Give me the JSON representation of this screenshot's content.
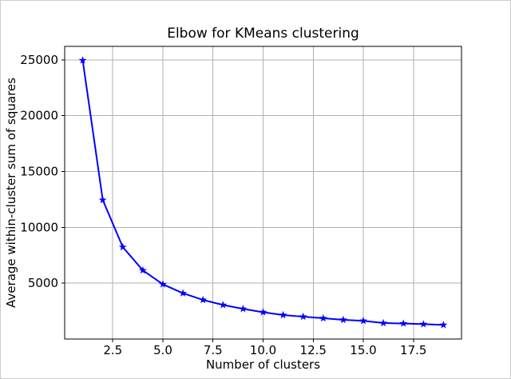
{
  "figure": {
    "background": "#ffffff",
    "border_color": "#cccccc"
  },
  "chart_data": {
    "type": "line",
    "title": "Elbow for KMeans clustering",
    "xlabel": "Number of clusters",
    "ylabel": "Average within-cluster sum of squares",
    "x": [
      1,
      2,
      3,
      4,
      5,
      6,
      7,
      8,
      9,
      10,
      11,
      12,
      13,
      14,
      15,
      16,
      17,
      18,
      19
    ],
    "y": [
      24950,
      12450,
      8230,
      6150,
      4900,
      4100,
      3500,
      3050,
      2700,
      2400,
      2150,
      2000,
      1860,
      1720,
      1630,
      1430,
      1390,
      1330,
      1260
    ],
    "xlim": [
      0.1,
      19.9
    ],
    "ylim": [
      0,
      26200
    ],
    "xticks": {
      "values": [
        2.5,
        5.0,
        7.5,
        10.0,
        12.5,
        15.0,
        17.5
      ],
      "labels": [
        "2.5",
        "5.0",
        "7.5",
        "10.0",
        "12.5",
        "15.0",
        "17.5"
      ]
    },
    "yticks": {
      "values": [
        5000,
        10000,
        15000,
        20000,
        25000
      ],
      "labels": [
        "5000",
        "10000",
        "15000",
        "20000",
        "25000"
      ]
    },
    "grid": true,
    "grid_color": "#b0b0b0",
    "line_color": "#0000ff",
    "marker": "star",
    "marker_color": "#0000ff",
    "axis_color": "#000000",
    "tick_label_color": "#000000"
  }
}
